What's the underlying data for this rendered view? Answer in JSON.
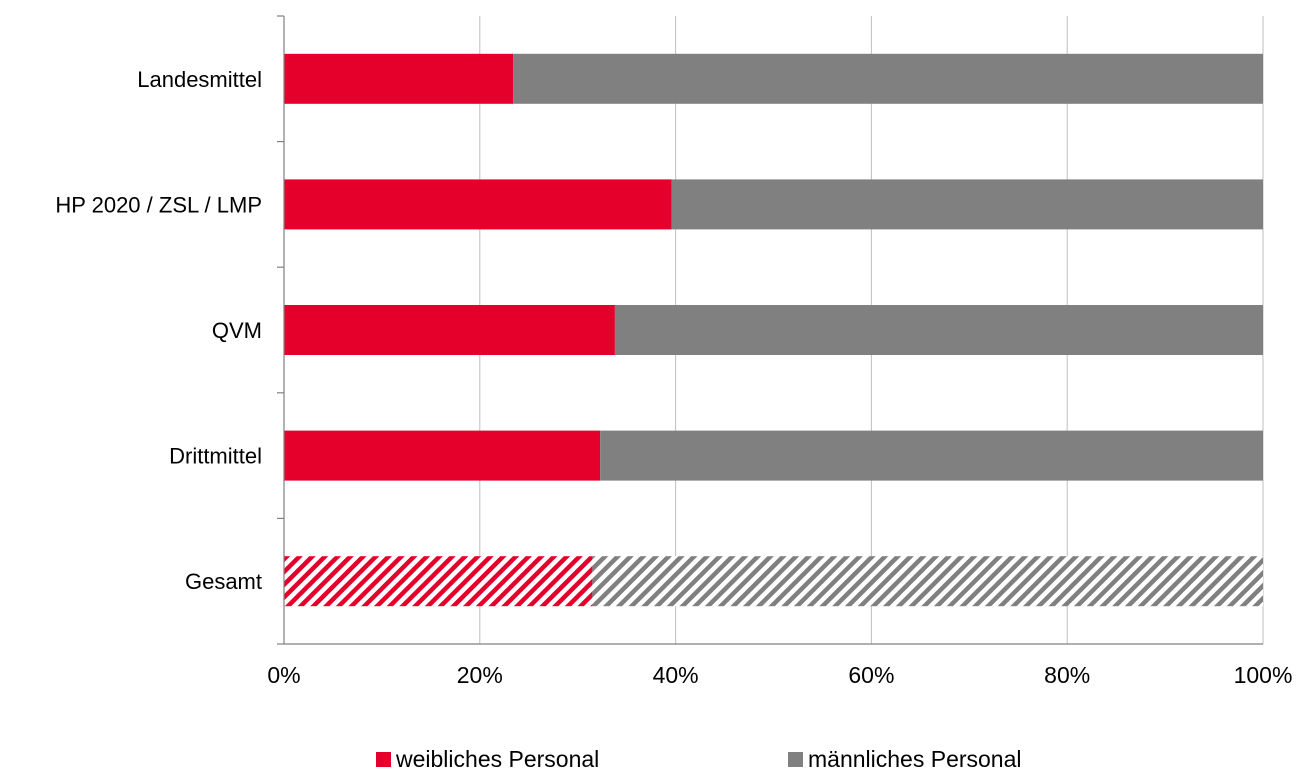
{
  "chart_data": {
    "type": "bar",
    "orientation": "horizontal",
    "stacked": "percent",
    "categories": [
      "Landesmittel",
      "HP 2020 / ZSL / LMP",
      "QVM",
      "Drittmittel",
      "Gesamt"
    ],
    "series": [
      {
        "name": "weibliches Personal",
        "values": [
          23.4,
          39.6,
          33.8,
          32.3,
          31.5
        ],
        "color": "#e4002b"
      },
      {
        "name": "männliches Personal",
        "values": [
          76.6,
          60.4,
          66.2,
          67.7,
          68.5
        ],
        "color": "#808080"
      }
    ],
    "hatched_categories": [
      "Gesamt"
    ],
    "xlim": [
      0,
      100
    ],
    "xticks": [
      "0%",
      "20%",
      "40%",
      "60%",
      "80%",
      "100%"
    ],
    "grid": "vertical",
    "legend": "bottom-center"
  }
}
